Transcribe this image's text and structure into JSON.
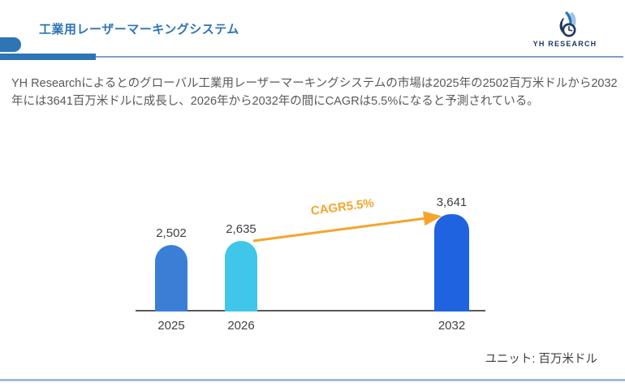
{
  "header": {
    "title": "工業用レーザーマーキングシステム",
    "logo_text": "YH RESEARCH"
  },
  "summary": {
    "text": "YH Researchによるとのグローバル工業用レーザーマーキングシステムの市場は2025年の2502百万米ドルから2032年には3641百万米ドルに成長し、2026年から2032年の間にCAGRは5.5%になると予測されている。"
  },
  "chart_data": {
    "type": "bar",
    "title": "",
    "categories": [
      "2025",
      "2026",
      "2032"
    ],
    "values": [
      2502,
      2635,
      3641
    ],
    "value_labels": [
      "2,502",
      "2,635",
      "3,641"
    ],
    "bar_colors": [
      "#3a7fd5",
      "#40c6e8",
      "#1f63e0"
    ],
    "annotation": "CAGR5.5%",
    "annotation_color": "#f5a52b",
    "unit_note": "ユニット: 百万米ドル",
    "xlabel": "",
    "ylabel": "",
    "ylim": [
      0,
      3641
    ],
    "grid": false,
    "legend": false
  },
  "colors": {
    "accent_blue": "#2e75b6",
    "divider_blue": "#7f9fc6",
    "text_gray": "#595959",
    "label_dark": "#404040",
    "logo_navy": "#1f3864",
    "logo_light_blue": "#9dc3e6",
    "bottom_border": "#a3bad3"
  }
}
